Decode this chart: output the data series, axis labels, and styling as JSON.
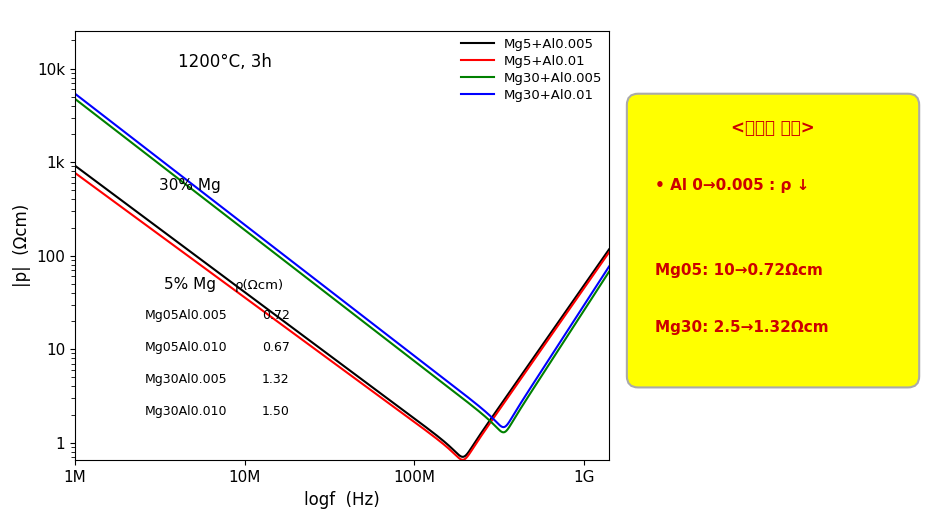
{
  "title": "1200°C, 3h",
  "xlabel": "logf  (Hz)",
  "ylabel": "|p|  (Ωcm)",
  "legend_labels": [
    "Mg5+Al0.005",
    "Mg5+Al0.01",
    "Mg30+Al0.005",
    "Mg30+Al0.01"
  ],
  "line_colors": [
    "black",
    "red",
    "green",
    "blue"
  ],
  "annotation_title": "<비저항 변화>",
  "annotation_line1": "• Al 0→0.005 : ρ ↓",
  "annotation_line2": "Mg05: 10→0.72Ωcm",
  "annotation_line3": "Mg30: 2.5→1.32Ωcm",
  "box_bg_color": "#FFFF00",
  "text_color_red": "#CC0000",
  "label_5mg": "5% Mg",
  "label_30mg": "30% Mg",
  "table_header": "ρ(Ωcm)",
  "table_rows": [
    [
      "Mg05Al0.005",
      "0.72"
    ],
    [
      "Mg05Al0.010",
      "0.67"
    ],
    [
      "Mg30Al0.005",
      "1.32"
    ],
    [
      "Mg30Al0.010",
      "1.50"
    ]
  ],
  "x_tick_labels": [
    "1M",
    "10M",
    "100M",
    "1G"
  ],
  "y_tick_labels": [
    "1",
    "10",
    "100",
    "1k",
    "10k"
  ]
}
